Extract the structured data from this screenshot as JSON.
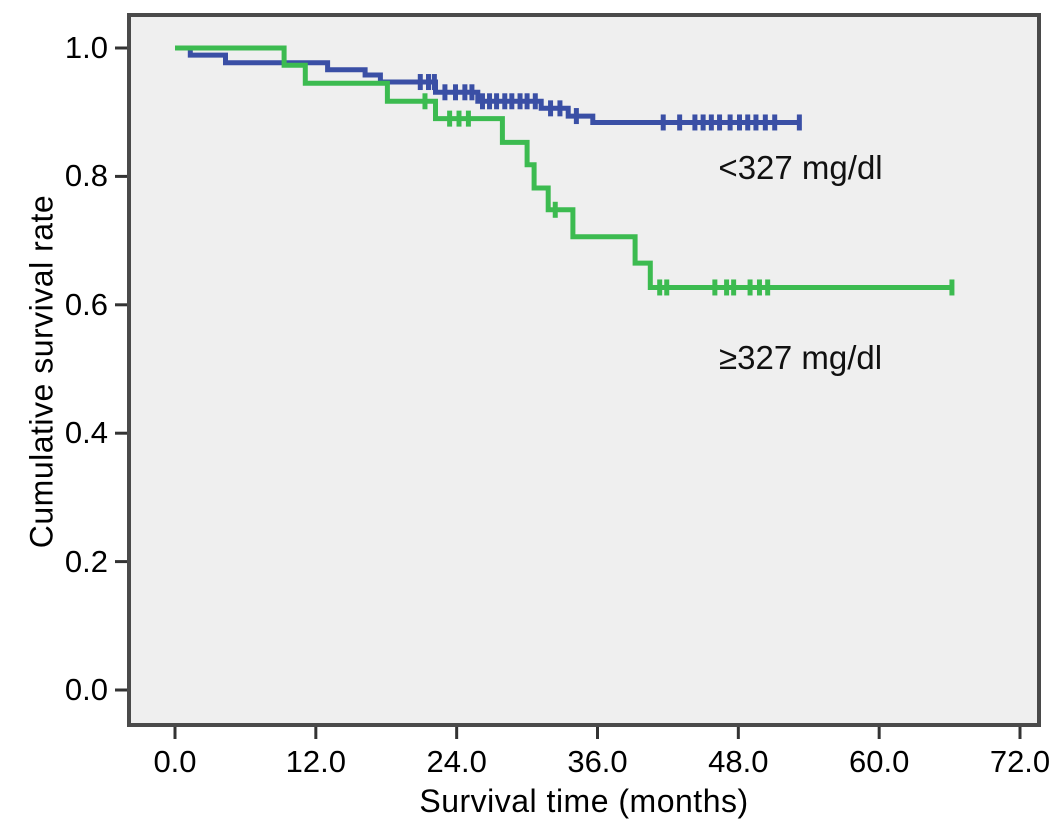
{
  "figure": {
    "plot_background": "#efefef",
    "border_color": "#4a4a4a",
    "tick_color": "#333333",
    "text_color": "#000000"
  },
  "chart_data": {
    "type": "line",
    "subtype": "kaplan-meier-step-survival",
    "title": "",
    "xlabel": "Survival time (months)",
    "ylabel": "Cumulative survival rate",
    "xlim": [
      0,
      72
    ],
    "ylim": [
      0,
      1.0
    ],
    "grid": false,
    "legend_position": "inline-annotations",
    "x_ticks": [
      0,
      12,
      24,
      36,
      48,
      60,
      72
    ],
    "x_tick_labels": [
      "0.0",
      "12.0",
      "24.0",
      "36.0",
      "48.0",
      "60.0",
      "72.0"
    ],
    "y_ticks": [
      0,
      0.2,
      0.4,
      0.6,
      0.8,
      1.0
    ],
    "y_tick_labels": [
      "0.0",
      "0.2",
      "0.4",
      "0.6",
      "0.8",
      "1.0"
    ],
    "series": [
      {
        "name": "<327 mg/dl",
        "color": "#3a4fa5",
        "steps": [
          [
            0,
            1.0
          ],
          [
            1.3,
            0.989
          ],
          [
            4.3,
            0.977
          ],
          [
            13.0,
            0.966
          ],
          [
            16.2,
            0.958
          ],
          [
            17.5,
            0.947
          ],
          [
            22.2,
            0.931
          ],
          [
            25.8,
            0.917
          ],
          [
            31.2,
            0.906
          ],
          [
            33.5,
            0.894
          ],
          [
            35.6,
            0.884
          ]
        ],
        "end_x": 53.2,
        "censor_marks": [
          20.9,
          21.6,
          22.1,
          23.0,
          23.9,
          24.7,
          25.3,
          26.2,
          26.8,
          27.4,
          28.1,
          28.7,
          29.4,
          30.0,
          30.7,
          32.0,
          32.8,
          34.2,
          41.6,
          43.0,
          44.3,
          45.0,
          45.7,
          46.4,
          47.3,
          48.1,
          48.8,
          49.5,
          50.3,
          51.1,
          53.2
        ]
      },
      {
        "name": "≥327 mg/dl",
        "color": "#3cbb50",
        "steps": [
          [
            0,
            1.0
          ],
          [
            9.3,
            0.973
          ],
          [
            11.1,
            0.945
          ],
          [
            18.1,
            0.917
          ],
          [
            22.2,
            0.89
          ],
          [
            27.9,
            0.853
          ],
          [
            30.0,
            0.818
          ],
          [
            30.6,
            0.782
          ],
          [
            31.8,
            0.748
          ],
          [
            33.9,
            0.706
          ],
          [
            39.2,
            0.665
          ],
          [
            40.5,
            0.627
          ]
        ],
        "end_x": 66.2,
        "censor_marks": [
          21.3,
          23.4,
          24.2,
          25.0,
          32.4,
          41.3,
          41.9,
          46.0,
          47.0,
          47.6,
          49.0,
          49.8,
          50.5,
          66.2
        ]
      }
    ],
    "annotations": [
      {
        "text": "<327 mg/dl",
        "x": 53.3,
        "y": 0.813
      },
      {
        "text": "≥327 mg/dl",
        "x": 53.3,
        "y": 0.517
      }
    ]
  }
}
